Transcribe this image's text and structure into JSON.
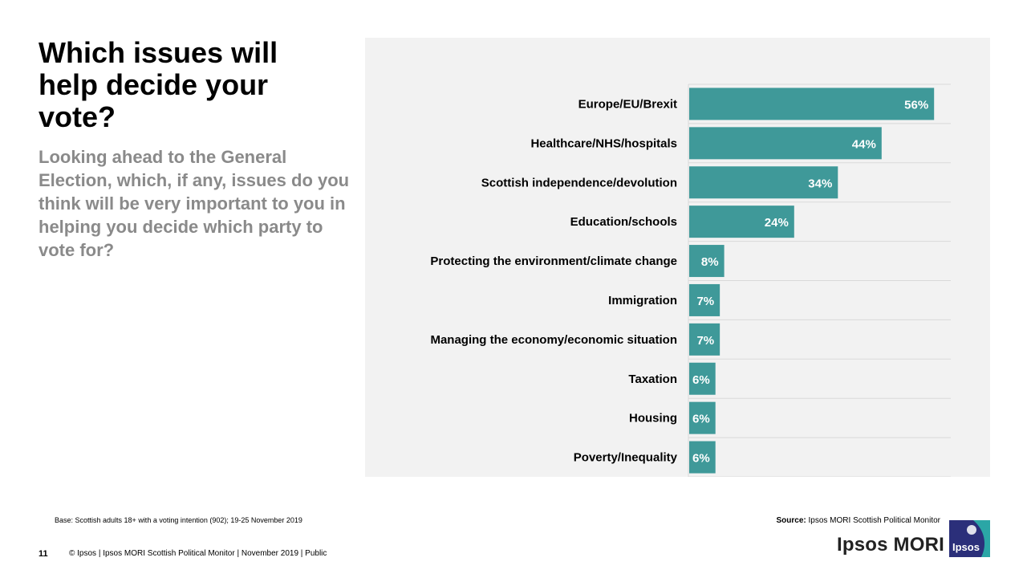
{
  "slide": {
    "title": "Which issues will help decide your vote?",
    "subtitle": "Looking ahead to the General Election, which, if any, issues do you think will be very important to you in helping you decide which party to vote for?",
    "base_note": "Base: Scottish adults 18+ with a voting intention (902); 19-25 November 2019",
    "source_label": "Source:",
    "source_text": " Ipsos MORI Scottish Political Monitor",
    "page_number": "11",
    "footer": "© Ipsos | Ipsos MORI Scottish Political Monitor | November 2019 | Public",
    "wordmark": "Ipsos MORI",
    "logo_text": "Ipsos"
  },
  "colors": {
    "bar": "#3f9999",
    "panel": "#f2f2f2",
    "grid": "#d9d9d9",
    "logo": "#2b2f7a",
    "logo_accent": "#2ba6a6"
  },
  "chart_data": {
    "type": "bar",
    "orientation": "horizontal",
    "title": "",
    "xlabel": "",
    "ylabel": "",
    "xlim": [
      0,
      60
    ],
    "categories": [
      "Europe/EU/Brexit",
      "Healthcare/NHS/hospitals",
      "Scottish independence/devolution",
      "Education/schools",
      "Protecting the environment/climate change",
      "Immigration",
      "Managing the economy/economic situation",
      "Taxation",
      "Housing",
      "Poverty/Inequality"
    ],
    "values": [
      56,
      44,
      34,
      24,
      8,
      7,
      7,
      6,
      6,
      6
    ],
    "labels": [
      "56%",
      "44%",
      "34%",
      "24%",
      "8%",
      "7%",
      "7%",
      "6%",
      "6%",
      "6%"
    ]
  }
}
